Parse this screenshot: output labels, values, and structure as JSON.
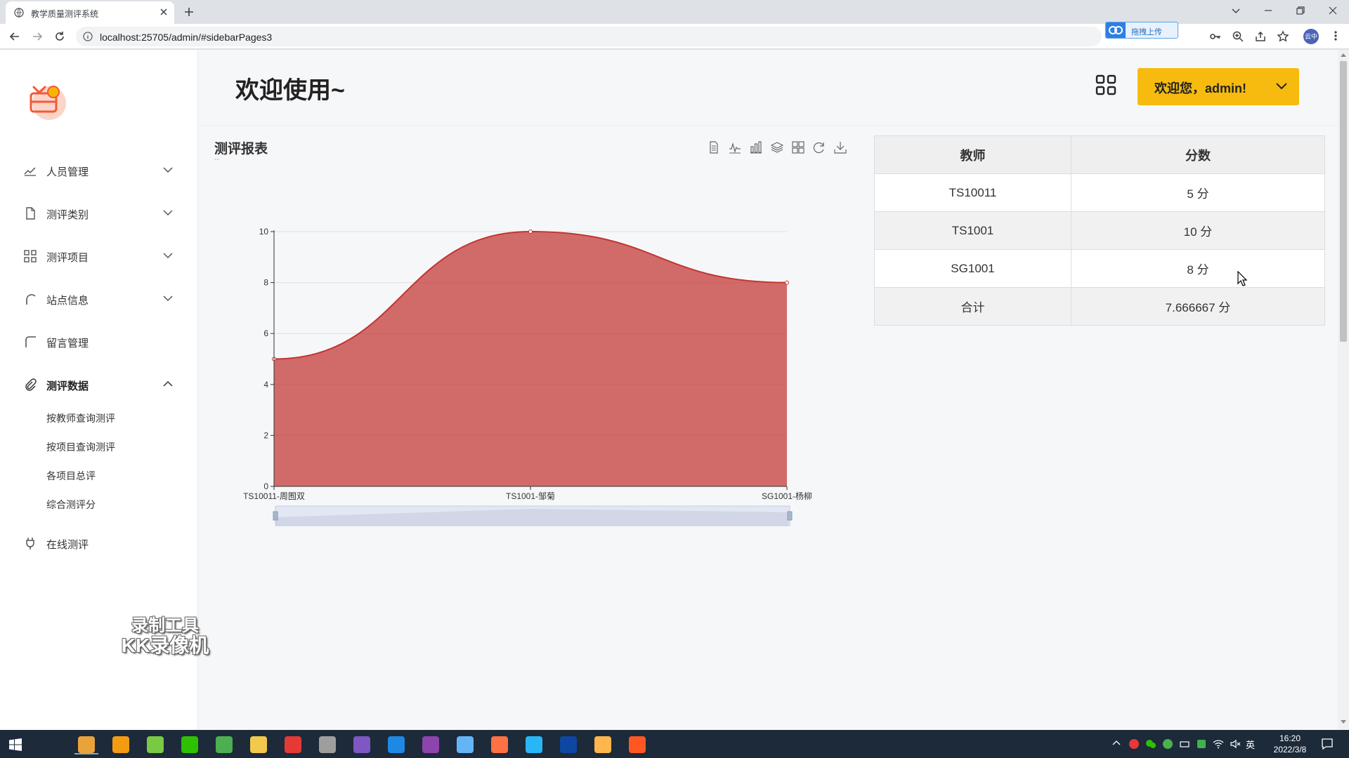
{
  "browser": {
    "tab_title": "教学质量测评系统",
    "url": "localhost:25705/admin/#sidebarPages3",
    "upload_label": "拖拽上传",
    "profile_label": "云中"
  },
  "sidebar": {
    "menu": [
      {
        "label": "人员管理",
        "icon": "trend-icon",
        "expanded": false
      },
      {
        "label": "测评类别",
        "icon": "document-icon",
        "expanded": false
      },
      {
        "label": "测评项目",
        "icon": "grid-icon",
        "expanded": false
      },
      {
        "label": "站点信息",
        "icon": "arc-icon",
        "expanded": false
      },
      {
        "label": "留言管理",
        "icon": "corner-icon",
        "expanded": false
      },
      {
        "label": "测评数据",
        "icon": "paperclip-icon",
        "expanded": true
      },
      {
        "label": "在线测评",
        "icon": "plug-icon",
        "expanded": false
      }
    ],
    "submenu": [
      "按教师查询测评",
      "按项目查询测评",
      "各项目总评",
      "综合测评分"
    ]
  },
  "header": {
    "title": "欢迎使用~",
    "user_button": "欢迎您，admin!"
  },
  "chart_card": {
    "title": "测评报表",
    "subtitle": "--",
    "toolbox": [
      "data-view-icon",
      "line-chart-icon",
      "bar-chart-icon",
      "stack-icon",
      "tiled-icon",
      "restore-icon",
      "download-icon"
    ]
  },
  "chart_data": {
    "type": "area",
    "categories": [
      "TS10011-周囿双",
      "TS1001-邹菊",
      "SG1001-杨柳"
    ],
    "values": [
      5,
      10,
      8
    ],
    "ylim": [
      0,
      10
    ],
    "yticks": [
      0,
      2,
      4,
      6,
      8,
      10
    ],
    "smooth": true,
    "grid": true,
    "datazoom_slider": true,
    "color": "#c23531"
  },
  "table": {
    "headers": [
      "教师",
      "分数"
    ],
    "rows": [
      [
        "TS10011",
        "5 分"
      ],
      [
        "TS1001",
        "10 分"
      ],
      [
        "SG1001",
        "8 分"
      ],
      [
        "合计",
        "7.666667 分"
      ]
    ]
  },
  "watermark": {
    "line1": "录制工具",
    "line2": "KK录像机"
  },
  "taskbar": {
    "apps": [
      "chrome-icon",
      "search-tool-icon",
      "green-app-icon",
      "wechat-icon",
      "notepad-icon",
      "folder-icon",
      "wps-icon",
      "tools-icon",
      "mountain-icon",
      "magnifier-icon",
      "visual-studio-icon",
      "pen-icon",
      "orange-app-icon",
      "baidu-netdisk-icon",
      "photoshop-icon",
      "game-icon",
      "recorder-icon"
    ],
    "ime": "英",
    "time": "16:20",
    "date": "2022/3/8"
  }
}
